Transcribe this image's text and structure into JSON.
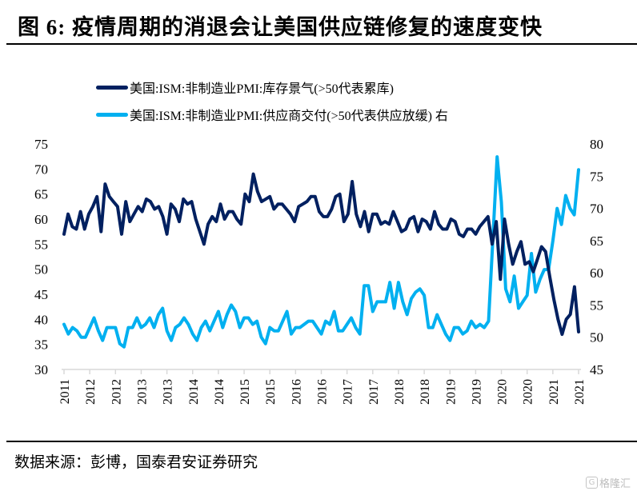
{
  "header": {
    "title": "图 6:  疫情周期的消退会让美国供应链修复的速度变快"
  },
  "footer": {
    "source": "数据来源：彭博，国泰君安证券研究",
    "watermark": "格隆汇",
    "watermark_icon": "G"
  },
  "colors": {
    "inventory": "#002060",
    "supplier": "#00B0F0",
    "axis": "#d9d9d9"
  },
  "chart_data": {
    "type": "line",
    "title": "图 6:  疫情周期的消退会让美国供应链修复的速度变快",
    "legend": [
      "美国:ISM:非制造业PMI:库存景气(>50代表累库)",
      "美国:ISM:非制造业PMI:供应商交付(>50代表供应放缓) 右"
    ],
    "legend_position": "top",
    "x_tick_labels": [
      "2011",
      "2012",
      "2012",
      "2013",
      "2013",
      "2014",
      "2014",
      "2015",
      "2015",
      "2016",
      "2016",
      "2017",
      "2017",
      "2018",
      "2018",
      "2019",
      "2019",
      "2020",
      "2020",
      "2021",
      "2021"
    ],
    "x_range": [
      "2011-01",
      "2021-03"
    ],
    "y_left": {
      "ticks": [
        "75",
        "70",
        "65",
        "60",
        "55",
        "50",
        "45",
        "40",
        "35",
        "30"
      ],
      "ylim": [
        30,
        75
      ]
    },
    "y_right": {
      "ticks": [
        "80",
        "75",
        "70",
        "65",
        "60",
        "55",
        "50",
        "45"
      ],
      "ylim": [
        45,
        80
      ]
    },
    "grid": false,
    "series": [
      {
        "name": "美国:ISM:非制造业PMI:库存景气(>50代表累库)",
        "axis": "left",
        "values": [
          57.0,
          61.0,
          58.5,
          58.0,
          61.5,
          58.0,
          61.0,
          62.5,
          64.5,
          57.5,
          67.0,
          64.5,
          63.5,
          62.5,
          57.0,
          63.5,
          59.5,
          61.0,
          62.5,
          61.5,
          64.0,
          63.5,
          62.0,
          62.5,
          60.5,
          57.0,
          63.0,
          62.0,
          59.5,
          64.0,
          63.0,
          63.5,
          60.0,
          57.5,
          55.0,
          59.0,
          60.5,
          59.5,
          63.0,
          60.0,
          61.5,
          61.5,
          60.0,
          59.0,
          65.0,
          63.5,
          69.0,
          65.5,
          63.5,
          64.0,
          64.5,
          62.0,
          63.0,
          63.0,
          62.0,
          61.0,
          59.5,
          62.5,
          63.0,
          63.5,
          64.5,
          64.5,
          61.5,
          60.5,
          60.5,
          62.0,
          64.5,
          65.0,
          59.5,
          61.0,
          67.5,
          61.0,
          58.5,
          61.5,
          57.5,
          61.0,
          61.0,
          59.0,
          59.5,
          59.0,
          61.5,
          59.5,
          57.5,
          58.0,
          60.0,
          60.5,
          57.5,
          60.0,
          59.5,
          58.0,
          61.5,
          59.0,
          58.0,
          58.0,
          60.0,
          59.5,
          57.0,
          56.5,
          58.0,
          58.0,
          57.0,
          58.5,
          59.5,
          60.5,
          55.0,
          59.5,
          48.0,
          60.0,
          55.0,
          51.0,
          53.5,
          55.5,
          51.0,
          51.5,
          49.5,
          52.0,
          54.5,
          53.5,
          48.5,
          44.0,
          40.0,
          37.0,
          40.0,
          41.0,
          46.5,
          37.5
        ]
      },
      {
        "name": "美国:ISM:非制造业PMI:供应商交付(>50代表供应放缓) 右",
        "axis": "right",
        "values": [
          52.0,
          50.5,
          51.5,
          51.0,
          50.0,
          50.0,
          51.5,
          53.0,
          51.0,
          49.5,
          51.5,
          51.5,
          51.5,
          49.0,
          48.5,
          51.5,
          51.5,
          53.0,
          51.5,
          52.0,
          53.0,
          51.5,
          53.5,
          54.5,
          51.0,
          49.5,
          51.5,
          52.0,
          53.0,
          52.0,
          50.5,
          49.5,
          51.5,
          52.5,
          51.0,
          52.5,
          54.0,
          51.5,
          53.5,
          55.0,
          54.0,
          51.5,
          53.0,
          53.0,
          52.0,
          52.5,
          50.0,
          49.0,
          51.5,
          51.0,
          51.0,
          52.5,
          54.0,
          50.5,
          51.5,
          51.5,
          52.0,
          52.5,
          52.5,
          51.5,
          50.5,
          52.5,
          52.0,
          54.0,
          51.0,
          51.0,
          52.0,
          53.0,
          51.5,
          50.5,
          58.0,
          58.0,
          54.0,
          55.5,
          55.5,
          55.5,
          58.5,
          54.5,
          58.5,
          55.5,
          53.5,
          56.0,
          57.0,
          57.5,
          56.5,
          51.5,
          51.5,
          53.5,
          52.0,
          50.5,
          49.5,
          51.5,
          51.5,
          50.5,
          51.0,
          52.5,
          51.5,
          52.0,
          51.5,
          52.5,
          65.0,
          78.0,
          71.0,
          57.5,
          55.5,
          59.5,
          54.5,
          55.5,
          56.5,
          63.0,
          57.0,
          59.0,
          60.5,
          60.5,
          65.0,
          70.0,
          67.5,
          72.0,
          70.0,
          69.0,
          76.0
        ]
      }
    ]
  }
}
